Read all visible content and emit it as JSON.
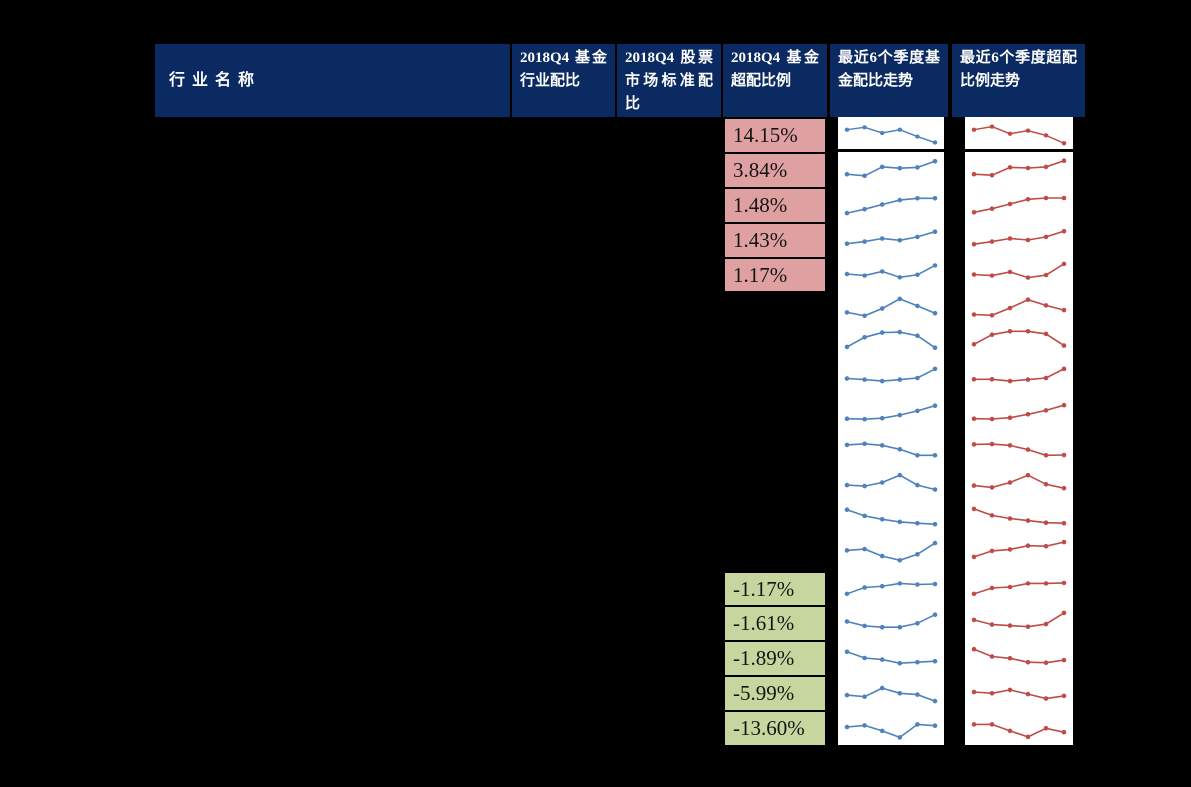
{
  "page": {
    "background": "#000000"
  },
  "table": {
    "header": {
      "bg": "#0B2A61",
      "text_color": "#FFFFFF",
      "columns": [
        {
          "id": "industry",
          "label": "行业名称"
        },
        {
          "id": "fund_alloc",
          "label": "2018Q4 基金行业配比"
        },
        {
          "id": "market_std",
          "label": "2018Q4 股票市场标准配比"
        },
        {
          "id": "over_alloc",
          "label": "2018Q4 基金超配比例"
        },
        {
          "id": "fund_trend",
          "label": "最近6个季度基金配比走势"
        },
        {
          "id": "over_trend",
          "label": "最近6个季度超配比例走势"
        }
      ]
    },
    "colors": {
      "positive_bg": "#DFA0A1",
      "negative_bg": "#C6D69E",
      "fund_line": "#4F81BD",
      "over_line": "#BE4B48",
      "chart_bg": "#FFFFFF",
      "border": "#000000"
    }
  },
  "chart_data": {
    "type": "table",
    "title": "",
    "notes": "Table of 18 industry rows. Only the over-allocation column cells (top 5 positive in pink, bottom 5 negative in green) and two sparkline trend columns are visible; other cells are blank/black. Sparkline values are normalized 0-1 visual estimates over 6 quarters (no axes shown).",
    "trend_points_per_row": 6,
    "sparkline_types": [
      "line",
      "line"
    ],
    "rows": [
      {
        "over_allocation": "14.15%",
        "sign": "positive",
        "fund_trend": [
          0.62,
          0.72,
          0.48,
          0.62,
          0.33,
          0.08
        ],
        "over_trend": [
          0.62,
          0.75,
          0.45,
          0.58,
          0.38,
          0.05
        ]
      },
      {
        "over_allocation": "3.84%",
        "sign": "positive",
        "fund_trend": [
          0.3,
          0.24,
          0.58,
          0.53,
          0.56,
          0.8
        ],
        "over_trend": [
          0.3,
          0.26,
          0.56,
          0.54,
          0.58,
          0.82
        ]
      },
      {
        "over_allocation": "1.48%",
        "sign": "positive",
        "fund_trend": [
          0.15,
          0.3,
          0.48,
          0.65,
          0.72,
          0.72
        ],
        "over_trend": [
          0.18,
          0.32,
          0.5,
          0.68,
          0.73,
          0.73
        ]
      },
      {
        "over_allocation": "1.43%",
        "sign": "positive",
        "fund_trend": [
          0.32,
          0.4,
          0.52,
          0.45,
          0.58,
          0.78
        ],
        "over_trend": [
          0.3,
          0.4,
          0.52,
          0.46,
          0.58,
          0.8
        ]
      },
      {
        "over_allocation": "1.17%",
        "sign": "positive",
        "fund_trend": [
          0.48,
          0.42,
          0.58,
          0.35,
          0.45,
          0.82
        ],
        "over_trend": [
          0.46,
          0.42,
          0.56,
          0.34,
          0.44,
          0.88
        ]
      },
      {
        "over_allocation": null,
        "sign": null,
        "fund_trend": [
          0.33,
          0.2,
          0.48,
          0.85,
          0.58,
          0.3
        ],
        "over_trend": [
          0.25,
          0.22,
          0.5,
          0.82,
          0.6,
          0.42
        ]
      },
      {
        "over_allocation": null,
        "sign": null,
        "fund_trend": [
          0.35,
          0.72,
          0.9,
          0.92,
          0.78,
          0.32
        ],
        "over_trend": [
          0.45,
          0.82,
          0.95,
          0.95,
          0.85,
          0.4
        ]
      },
      {
        "over_allocation": null,
        "sign": null,
        "fund_trend": [
          0.48,
          0.44,
          0.38,
          0.44,
          0.5,
          0.85
        ],
        "over_trend": [
          0.45,
          0.45,
          0.38,
          0.44,
          0.5,
          0.85
        ]
      },
      {
        "over_allocation": null,
        "sign": null,
        "fund_trend": [
          0.28,
          0.26,
          0.3,
          0.42,
          0.58,
          0.78
        ],
        "over_trend": [
          0.28,
          0.27,
          0.32,
          0.45,
          0.6,
          0.8
        ]
      },
      {
        "over_allocation": null,
        "sign": null,
        "fund_trend": [
          0.62,
          0.66,
          0.6,
          0.45,
          0.22,
          0.22
        ],
        "over_trend": [
          0.64,
          0.65,
          0.6,
          0.44,
          0.22,
          0.23
        ]
      },
      {
        "over_allocation": null,
        "sign": null,
        "fund_trend": [
          0.42,
          0.38,
          0.52,
          0.8,
          0.42,
          0.25
        ],
        "over_trend": [
          0.4,
          0.33,
          0.52,
          0.8,
          0.45,
          0.3
        ]
      },
      {
        "over_allocation": null,
        "sign": null,
        "fund_trend": [
          0.82,
          0.58,
          0.45,
          0.35,
          0.3,
          0.26
        ],
        "over_trend": [
          0.85,
          0.6,
          0.48,
          0.4,
          0.32,
          0.3
        ]
      },
      {
        "over_allocation": null,
        "sign": null,
        "fund_trend": [
          0.6,
          0.65,
          0.38,
          0.22,
          0.45,
          0.88
        ],
        "over_trend": [
          0.35,
          0.58,
          0.64,
          0.78,
          0.76,
          0.92
        ]
      },
      {
        "over_allocation": "-1.17%",
        "sign": "negative",
        "fund_trend": [
          0.25,
          0.5,
          0.55,
          0.66,
          0.62,
          0.64
        ],
        "over_trend": [
          0.25,
          0.48,
          0.52,
          0.66,
          0.66,
          0.68
        ]
      },
      {
        "over_allocation": "-1.61%",
        "sign": "negative",
        "fund_trend": [
          0.52,
          0.35,
          0.3,
          0.3,
          0.45,
          0.78
        ],
        "over_trend": [
          0.58,
          0.4,
          0.36,
          0.32,
          0.42,
          0.85
        ]
      },
      {
        "over_allocation": "-1.89%",
        "sign": "negative",
        "fund_trend": [
          0.7,
          0.46,
          0.4,
          0.26,
          0.3,
          0.34
        ],
        "over_trend": [
          0.8,
          0.52,
          0.45,
          0.3,
          0.28,
          0.38
        ]
      },
      {
        "over_allocation": "-5.99%",
        "sign": "negative",
        "fund_trend": [
          0.38,
          0.32,
          0.65,
          0.45,
          0.4,
          0.15
        ],
        "over_trend": [
          0.5,
          0.45,
          0.58,
          0.42,
          0.25,
          0.35
        ]
      },
      {
        "over_allocation": "-13.60%",
        "sign": "negative",
        "fund_trend": [
          0.5,
          0.56,
          0.35,
          0.1,
          0.6,
          0.55
        ],
        "over_trend": [
          0.6,
          0.6,
          0.35,
          0.12,
          0.45,
          0.3
        ]
      }
    ]
  }
}
